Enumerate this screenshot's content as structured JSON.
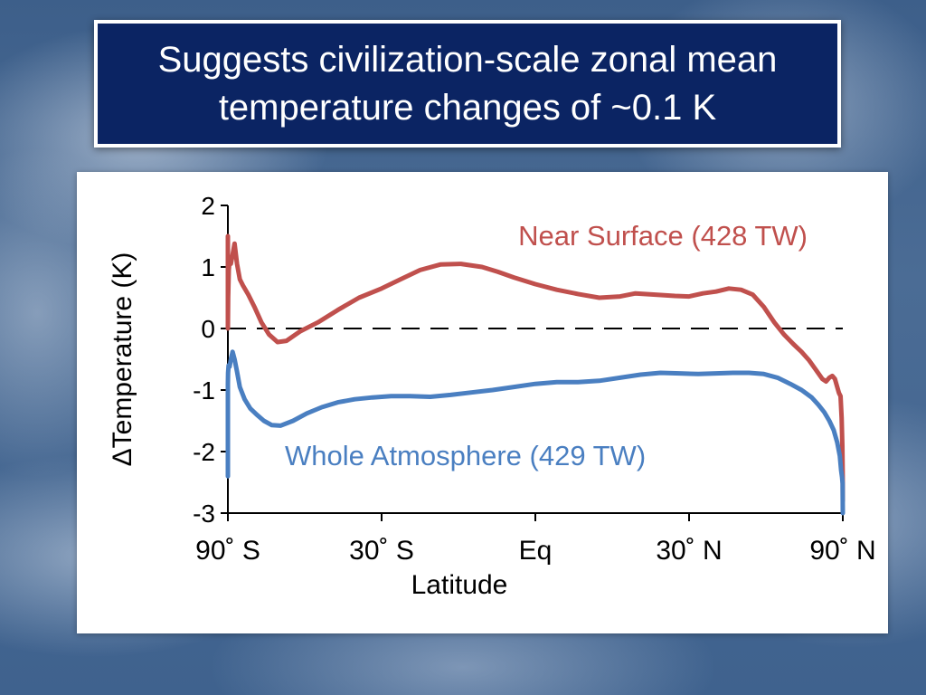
{
  "slide": {
    "title_line1": "Suggests civilization-scale zonal mean",
    "title_line2": "temperature changes of ~0.1 K"
  },
  "chart_data": {
    "type": "line",
    "xlabel": "Latitude",
    "ylabel": "ΔTemperature (K)",
    "xlim": [
      -90,
      90
    ],
    "ylim": [
      -3,
      2
    ],
    "x_scale": "sine of latitude",
    "x_ticks": [
      {
        "value": -90,
        "label": "90˚ S"
      },
      {
        "value": -30,
        "label": "30˚ S"
      },
      {
        "value": 0,
        "label": "Eq"
      },
      {
        "value": 30,
        "label": "30˚ N"
      },
      {
        "value": 90,
        "label": "90˚ N"
      }
    ],
    "y_ticks": [
      2,
      1,
      0,
      -1,
      -2,
      -3
    ],
    "zero_line": "dashed",
    "grid": false,
    "series": [
      {
        "name": "Near Surface (428 TW)",
        "color": "#c0504d",
        "points": [
          [
            -90,
            1.5
          ],
          [
            -89.5,
            0.0
          ],
          [
            -87.5,
            0.5
          ],
          [
            -85.5,
            0.95
          ],
          [
            -84,
            1.1
          ],
          [
            -82,
            1.05
          ],
          [
            -80,
            1.2
          ],
          [
            -78,
            1.38
          ],
          [
            -76,
            1.05
          ],
          [
            -74,
            0.8
          ],
          [
            -72,
            0.7
          ],
          [
            -69,
            0.55
          ],
          [
            -66,
            0.35
          ],
          [
            -63,
            0.1
          ],
          [
            -60,
            -0.1
          ],
          [
            -57,
            -0.22
          ],
          [
            -54,
            -0.2
          ],
          [
            -50,
            -0.05
          ],
          [
            -45,
            0.1
          ],
          [
            -40,
            0.3
          ],
          [
            -35,
            0.5
          ],
          [
            -30,
            0.65
          ],
          [
            -26,
            0.8
          ],
          [
            -22,
            0.95
          ],
          [
            -18,
            1.04
          ],
          [
            -14,
            1.05
          ],
          [
            -10,
            1.0
          ],
          [
            -7,
            0.92
          ],
          [
            -4,
            0.83
          ],
          [
            0,
            0.72
          ],
          [
            4,
            0.63
          ],
          [
            8,
            0.56
          ],
          [
            12,
            0.5
          ],
          [
            16,
            0.52
          ],
          [
            19,
            0.57
          ],
          [
            23,
            0.55
          ],
          [
            27,
            0.53
          ],
          [
            30,
            0.52
          ],
          [
            33,
            0.57
          ],
          [
            36,
            0.6
          ],
          [
            39,
            0.65
          ],
          [
            42,
            0.63
          ],
          [
            45,
            0.55
          ],
          [
            48,
            0.35
          ],
          [
            51,
            0.1
          ],
          [
            54,
            -0.1
          ],
          [
            57,
            -0.25
          ],
          [
            60,
            -0.38
          ],
          [
            63,
            -0.52
          ],
          [
            66,
            -0.68
          ],
          [
            69,
            -0.82
          ],
          [
            71,
            -0.86
          ],
          [
            73,
            -0.8
          ],
          [
            75,
            -0.77
          ],
          [
            77,
            -0.82
          ],
          [
            79,
            -0.95
          ],
          [
            81,
            -1.05
          ],
          [
            83,
            -1.1
          ],
          [
            85,
            -1.45
          ],
          [
            87,
            -1.9
          ],
          [
            88.5,
            -2.4
          ],
          [
            90,
            -2.8
          ]
        ]
      },
      {
        "name": "Whole Atmosphere (429 TW)",
        "color": "#4a7fc1",
        "points": [
          [
            -90,
            -2.4
          ],
          [
            -89.5,
            -0.9
          ],
          [
            -88,
            -0.72
          ],
          [
            -86,
            -0.6
          ],
          [
            -84,
            -0.62
          ],
          [
            -82,
            -0.5
          ],
          [
            -80,
            -0.38
          ],
          [
            -78,
            -0.5
          ],
          [
            -76,
            -0.7
          ],
          [
            -74,
            -0.95
          ],
          [
            -71,
            -1.15
          ],
          [
            -68,
            -1.3
          ],
          [
            -65,
            -1.4
          ],
          [
            -62,
            -1.5
          ],
          [
            -59,
            -1.57
          ],
          [
            -56,
            -1.58
          ],
          [
            -52,
            -1.5
          ],
          [
            -48,
            -1.38
          ],
          [
            -44,
            -1.28
          ],
          [
            -40,
            -1.2
          ],
          [
            -36,
            -1.15
          ],
          [
            -32,
            -1.12
          ],
          [
            -28,
            -1.1
          ],
          [
            -24,
            -1.1
          ],
          [
            -20,
            -1.11
          ],
          [
            -16,
            -1.08
          ],
          [
            -12,
            -1.04
          ],
          [
            -8,
            -1.0
          ],
          [
            -4,
            -0.95
          ],
          [
            0,
            -0.9
          ],
          [
            4,
            -0.87
          ],
          [
            8,
            -0.87
          ],
          [
            12,
            -0.85
          ],
          [
            16,
            -0.8
          ],
          [
            20,
            -0.75
          ],
          [
            24,
            -0.72
          ],
          [
            28,
            -0.73
          ],
          [
            32,
            -0.74
          ],
          [
            36,
            -0.73
          ],
          [
            40,
            -0.72
          ],
          [
            44,
            -0.72
          ],
          [
            48,
            -0.74
          ],
          [
            52,
            -0.8
          ],
          [
            56,
            -0.9
          ],
          [
            60,
            -1.0
          ],
          [
            64,
            -1.12
          ],
          [
            67,
            -1.24
          ],
          [
            70,
            -1.36
          ],
          [
            73,
            -1.5
          ],
          [
            76,
            -1.65
          ],
          [
            79,
            -1.85
          ],
          [
            82,
            -2.07
          ],
          [
            84,
            -2.3
          ],
          [
            86,
            -2.42
          ],
          [
            88,
            -2.52
          ],
          [
            90,
            -3.0
          ]
        ]
      }
    ],
    "annotations": [
      {
        "series_index": 0,
        "label": "Near Surface (428 TW)"
      },
      {
        "series_index": 1,
        "label": "Whole Atmosphere (429 TW)"
      }
    ]
  }
}
